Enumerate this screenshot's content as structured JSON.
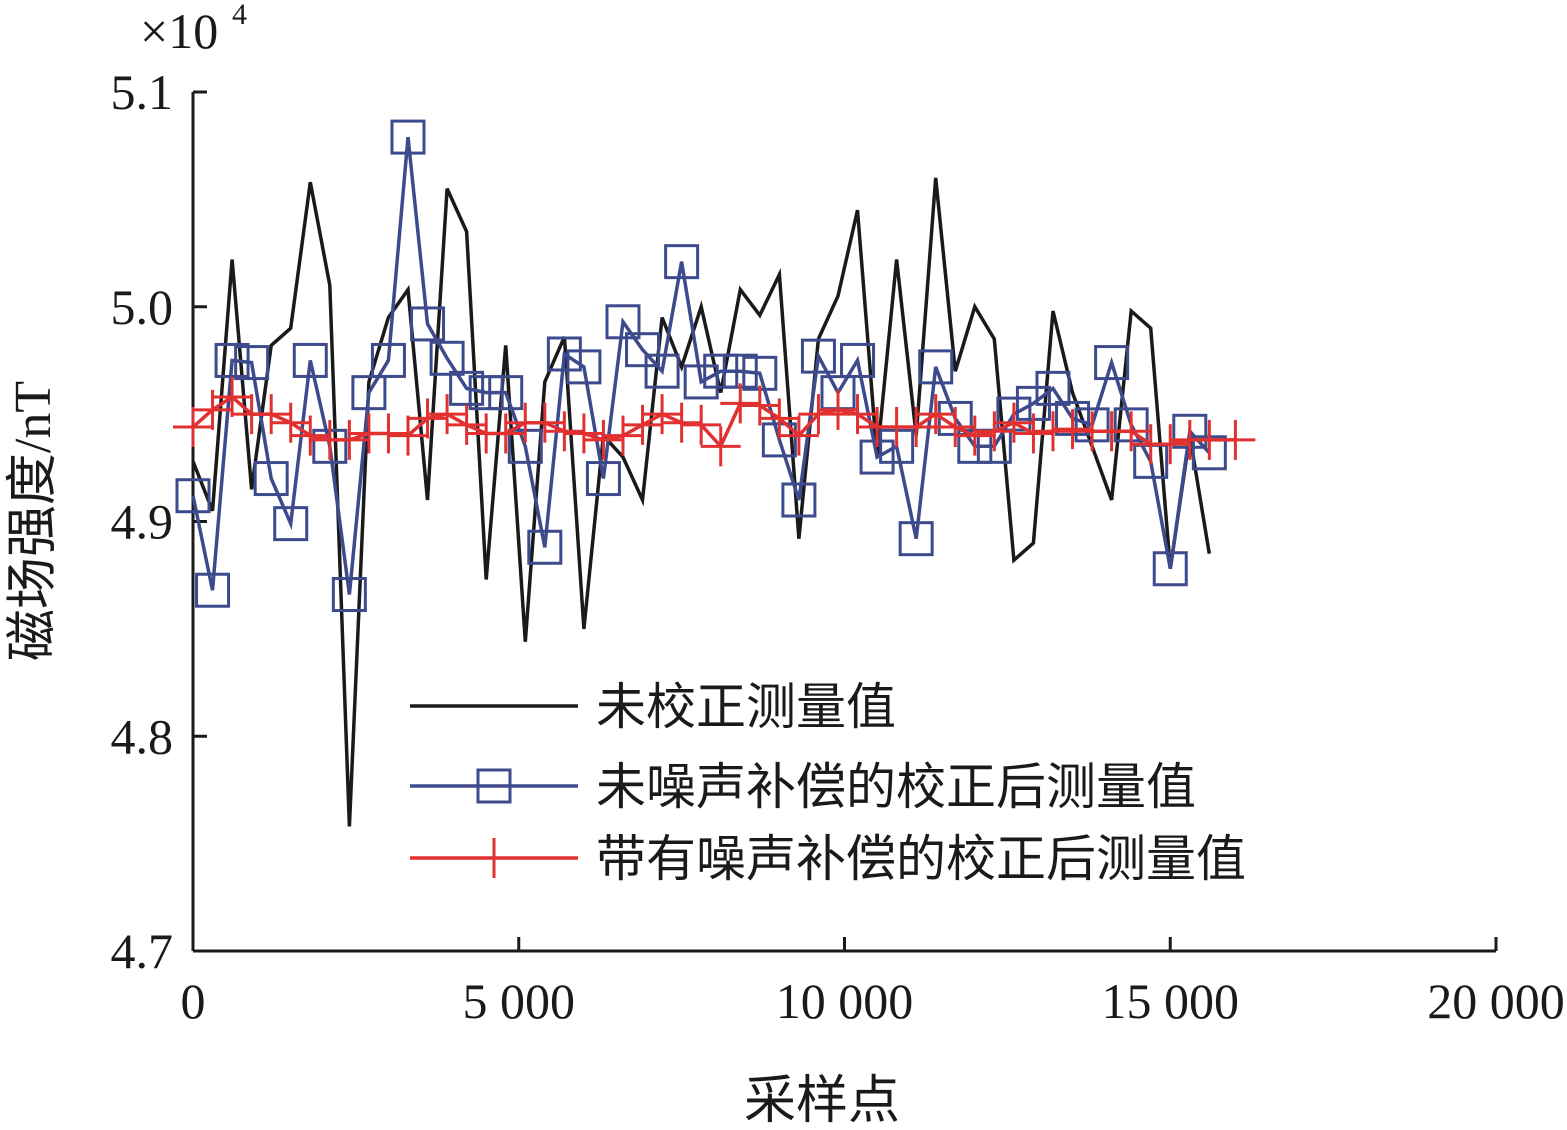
{
  "chart_data": {
    "type": "line",
    "title": "",
    "xlabel": "采样点",
    "ylabel": "磁场强度/nT",
    "y_multiplier": "×10",
    "y_multiplier_exponent": "4",
    "xlim": [
      0,
      20000
    ],
    "ylim": [
      4.7,
      5.1
    ],
    "x_ticks": [
      0,
      5000,
      10000,
      15000,
      20000
    ],
    "x_tick_labels": [
      "0",
      "5 000",
      "10 000",
      "15 000",
      "20 000"
    ],
    "y_ticks": [
      4.7,
      4.8,
      4.9,
      5.0,
      5.1
    ],
    "y_tick_labels": [
      "4.7",
      "4.8",
      "4.9",
      "5.0",
      "5.1"
    ],
    "grid": false,
    "legend_position": "bottom-center",
    "series": [
      {
        "name": "未校正测量值",
        "color": "#1a1a1a",
        "marker": "none",
        "x": [
          0,
          300,
          600,
          900,
          1200,
          1500,
          1800,
          2100,
          2400,
          2700,
          3000,
          3300,
          3600,
          3900,
          4200,
          4500,
          4800,
          5100,
          5400,
          5700,
          6000,
          6300,
          6600,
          6900,
          7200,
          7500,
          7800,
          8100,
          8400,
          8700,
          9000,
          9300,
          9600,
          9900,
          10200,
          10500,
          10800,
          11100,
          11400,
          11700,
          12000,
          12300,
          12600,
          12900,
          13200,
          13500,
          13800,
          14100,
          14400,
          14700,
          15000,
          15300,
          15600
        ],
        "y": [
          4.928,
          4.905,
          5.022,
          4.915,
          4.982,
          4.99,
          5.058,
          5.01,
          4.758,
          4.965,
          4.995,
          5.008,
          4.91,
          5.055,
          5.035,
          4.873,
          4.982,
          4.844,
          4.965,
          4.986,
          4.85,
          4.94,
          4.93,
          4.91,
          4.995,
          4.972,
          5.0,
          4.96,
          5.008,
          4.996,
          5.015,
          4.892,
          4.985,
          5.005,
          5.045,
          4.93,
          5.022,
          4.94,
          5.06,
          4.97,
          5.0,
          4.985,
          4.882,
          4.89,
          4.998,
          4.96,
          4.935,
          4.91,
          4.998,
          4.99,
          4.878,
          4.94,
          4.885
        ]
      },
      {
        "name": "未噪声补偿的校正后测量值",
        "color": "#3d4a8c",
        "marker": "square",
        "x": [
          0,
          300,
          600,
          900,
          1200,
          1500,
          1800,
          2100,
          2400,
          2700,
          3000,
          3300,
          3600,
          3900,
          4200,
          4500,
          4800,
          5100,
          5400,
          5700,
          6000,
          6300,
          6600,
          6900,
          7200,
          7500,
          7800,
          8100,
          8400,
          8700,
          9000,
          9300,
          9600,
          9900,
          10200,
          10500,
          10800,
          11100,
          11400,
          11700,
          12000,
          12300,
          12600,
          12900,
          13200,
          13500,
          13800,
          14100,
          14400,
          14700,
          15000,
          15300,
          15600
        ],
        "y": [
          4.912,
          4.868,
          4.975,
          4.974,
          4.92,
          4.899,
          4.975,
          4.935,
          4.866,
          4.96,
          4.975,
          5.079,
          4.992,
          4.976,
          4.962,
          4.96,
          4.96,
          4.935,
          4.888,
          4.978,
          4.972,
          4.92,
          4.993,
          4.98,
          4.97,
          5.021,
          4.965,
          4.97,
          4.97,
          4.969,
          4.938,
          4.91,
          4.977,
          4.96,
          4.975,
          4.93,
          4.935,
          4.892,
          4.972,
          4.948,
          4.935,
          4.935,
          4.95,
          4.955,
          4.962,
          4.948,
          4.945,
          4.974,
          4.945,
          4.928,
          4.878,
          4.942,
          4.932
        ]
      },
      {
        "name": "带有噪声补偿的校正后测量值",
        "color": "#e03030",
        "marker": "plus",
        "x": [
          0,
          300,
          600,
          900,
          1200,
          1500,
          1800,
          2100,
          2400,
          2700,
          3000,
          3300,
          3600,
          3900,
          4200,
          4500,
          4800,
          5100,
          5400,
          5700,
          6000,
          6300,
          6600,
          6900,
          7200,
          7500,
          7800,
          8100,
          8400,
          8700,
          9000,
          9300,
          9600,
          9900,
          10200,
          10500,
          10800,
          11100,
          11400,
          11700,
          12000,
          12300,
          12600,
          12900,
          13200,
          13500,
          13800,
          14100,
          14400,
          14700,
          15000,
          15300,
          15600,
          16000
        ],
        "y": [
          4.944,
          4.952,
          4.958,
          4.95,
          4.95,
          4.946,
          4.94,
          4.938,
          4.938,
          4.941,
          4.941,
          4.94,
          4.948,
          4.95,
          4.945,
          4.941,
          4.941,
          4.946,
          4.946,
          4.942,
          4.941,
          4.938,
          4.94,
          4.945,
          4.95,
          4.946,
          4.945,
          4.935,
          4.955,
          4.954,
          4.948,
          4.94,
          4.95,
          4.952,
          4.95,
          4.944,
          4.944,
          4.944,
          4.95,
          4.944,
          4.94,
          4.942,
          4.946,
          4.941,
          4.942,
          4.943,
          4.942,
          4.942,
          4.942,
          4.936,
          4.936,
          4.938,
          4.938,
          4.938
        ]
      }
    ]
  }
}
